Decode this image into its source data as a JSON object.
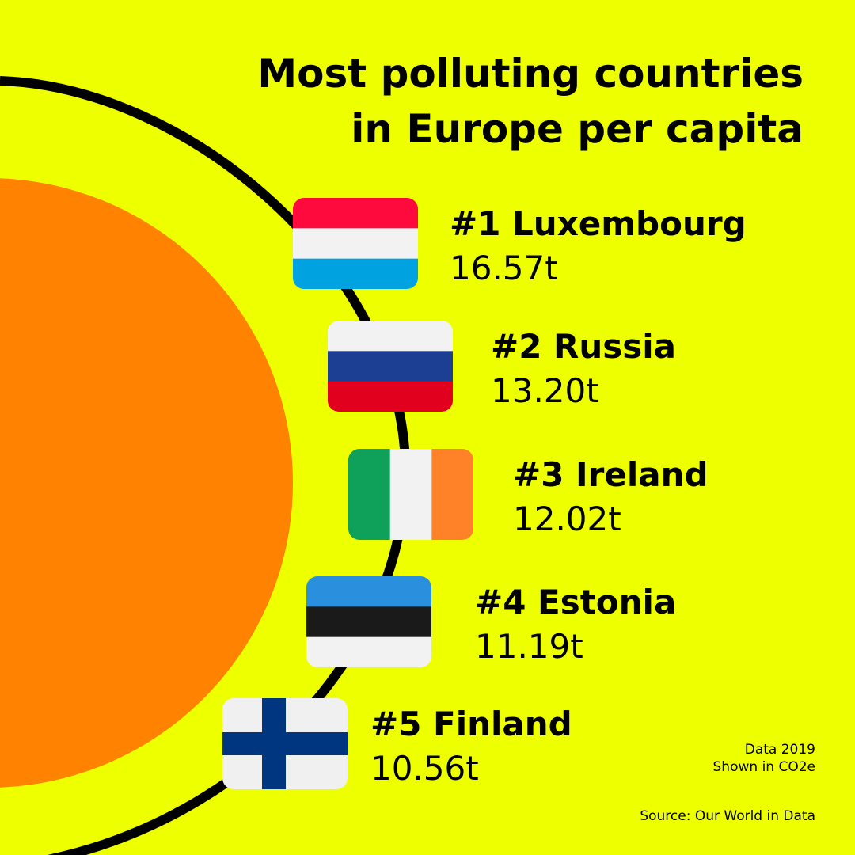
{
  "title": [
    "Most polluting countries",
    "in Europe per capita"
  ],
  "items": [
    {
      "label": "#1 Luxembourg",
      "value": "16.57t"
    },
    {
      "label": "#2 Russia",
      "value": "13.20t"
    },
    {
      "label": "#3 Ireland",
      "value": "12.02t"
    },
    {
      "label": "#4 Estonia",
      "value": "11.19t"
    },
    {
      "label": "#5 Finland",
      "value": "10.56t"
    }
  ],
  "notes": [
    "Data 2019",
    "Shown in CO2e"
  ],
  "source": "Source: Our World in Data"
}
